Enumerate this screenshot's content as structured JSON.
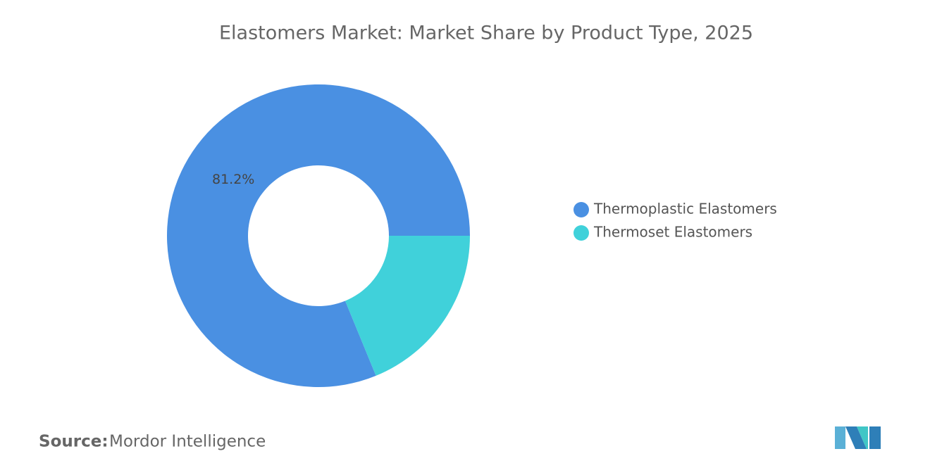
{
  "chart_data": {
    "type": "donut",
    "title": "Elastomers Market: Market Share by Product Type, 2025",
    "categories": [
      "Thermoplastic Elastomers",
      "Thermoset Elastomers"
    ],
    "values": [
      81.2,
      18.8
    ],
    "value_labels": [
      "81.2%",
      null
    ],
    "colors": [
      "#4a90e2",
      "#40d1da"
    ],
    "legend": "right"
  },
  "footer": {
    "source_label": "Source:",
    "source": "Mordor Intelligence"
  }
}
